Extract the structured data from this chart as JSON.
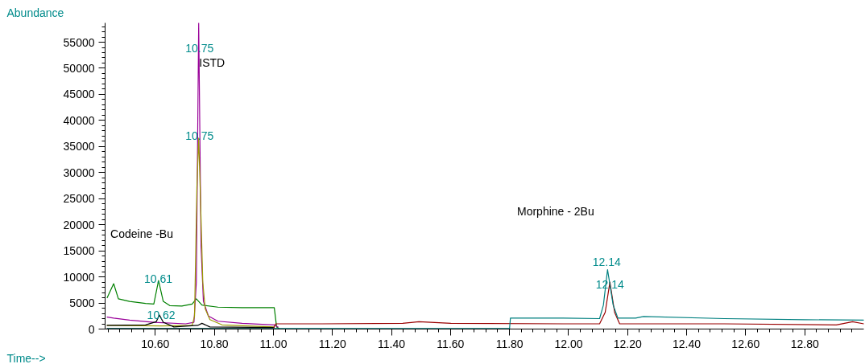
{
  "chart_data": {
    "type": "line",
    "xlabel": "Time-->",
    "ylabel": "Abundance",
    "xlim": [
      10.43,
      13.0
    ],
    "ylim": [
      0,
      58700
    ],
    "xticks": [
      {
        "value": 10.6,
        "label": "10.60"
      },
      {
        "value": 10.8,
        "label": "10.80"
      },
      {
        "value": 11.0,
        "label": "11.00"
      },
      {
        "value": 11.2,
        "label": "11.20"
      },
      {
        "value": 11.4,
        "label": "11.40"
      },
      {
        "value": 11.6,
        "label": "11.60"
      },
      {
        "value": 11.8,
        "label": "11.80"
      },
      {
        "value": 12.0,
        "label": "12.00"
      },
      {
        "value": 12.2,
        "label": "12.20"
      },
      {
        "value": 12.4,
        "label": "12.40"
      },
      {
        "value": 12.6,
        "label": "12.60"
      },
      {
        "value": 12.8,
        "label": "12.80"
      }
    ],
    "yticks": [
      0,
      5000,
      10000,
      15000,
      20000,
      25000,
      30000,
      35000,
      40000,
      45000,
      50000,
      55000
    ],
    "grid": false,
    "marker": "none",
    "line_style": "solid",
    "series": [
      {
        "color": "#008000",
        "x": [
          10.437,
          10.459,
          10.475,
          10.513,
          10.567,
          10.595,
          10.611,
          10.627,
          10.649,
          10.69,
          10.725,
          10.739,
          10.758,
          10.812,
          10.894,
          11.003,
          11.011,
          11.019
        ],
        "values": [
          6000,
          8700,
          5800,
          5300,
          4900,
          4800,
          9300,
          5300,
          4500,
          4400,
          4800,
          5800,
          4600,
          4200,
          4100,
          4100,
          400,
          100
        ]
      },
      {
        "color": "#990099",
        "x": [
          10.437,
          10.459,
          10.513,
          10.595,
          10.703,
          10.731,
          10.739,
          10.747,
          10.755,
          10.763,
          10.78,
          10.812,
          10.894,
          11.003,
          11.016
        ],
        "values": [
          2300,
          2100,
          1700,
          1300,
          1000,
          1300,
          8900,
          58700,
          15900,
          5300,
          2500,
          1500,
          1100,
          800,
          400
        ]
      },
      {
        "color": "#999900",
        "x": [
          10.437,
          10.622,
          10.725,
          10.733,
          10.741,
          10.747,
          10.752,
          10.761,
          10.769,
          10.785,
          10.826,
          11.003
        ],
        "values": [
          700,
          600,
          700,
          2500,
          27200,
          36600,
          27200,
          8900,
          3900,
          1800,
          800,
          400
        ]
      },
      {
        "color": "#000000",
        "x": [
          10.437,
          10.567,
          10.603,
          10.614,
          10.627,
          10.663,
          10.744,
          10.758,
          10.785,
          11.003
        ],
        "values": [
          700,
          800,
          1400,
          2700,
          1300,
          400,
          700,
          1100,
          400,
          300
        ]
      },
      {
        "color": "#990000",
        "x": [
          10.437,
          11.0,
          11.008,
          11.166,
          11.438,
          11.493,
          11.601,
          11.982,
          12.105,
          12.124,
          12.14,
          12.156,
          12.173,
          12.527,
          12.907,
          12.962,
          13.0
        ],
        "values": [
          100,
          100,
          1000,
          1000,
          1100,
          1400,
          1100,
          1000,
          1000,
          3200,
          9000,
          3200,
          1000,
          1000,
          800,
          1400,
          1000
        ]
      },
      {
        "color": "#008080",
        "x": [
          10.437,
          11.8,
          11.803,
          11.819,
          11.982,
          12.105,
          12.118,
          12.132,
          12.151,
          12.167,
          12.227,
          12.254,
          12.527,
          12.799,
          13.0
        ],
        "values": [
          100,
          100,
          2100,
          2100,
          2100,
          2000,
          4600,
          11400,
          4600,
          2100,
          2100,
          2400,
          2000,
          1800,
          1700
        ]
      }
    ],
    "annotations": [
      {
        "text": "10.75",
        "x": 10.75,
        "y": 53800
      },
      "ISTD",
      {
        "text": "10.75",
        "x": 10.75,
        "y": 37000
      },
      "Codeine -Bu",
      {
        "text": "10.61",
        "x": 10.61,
        "y": 9600
      },
      {
        "text": "10.62",
        "x": 10.62,
        "y": 2700
      },
      "Morphine - 2Bu",
      "12.14",
      {
        "text": "12.14",
        "x": 12.14,
        "y": 8600
      }
    ]
  }
}
